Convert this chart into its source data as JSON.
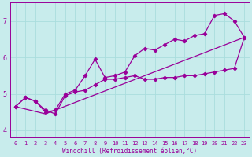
{
  "xlabel": "Windchill (Refroidissement éolien,°C)",
  "bg_color": "#c8ecec",
  "line_color": "#990099",
  "grid_color": "#aadddd",
  "xlim": [
    -0.5,
    23.5
  ],
  "ylim": [
    3.8,
    7.5
  ],
  "xticks": [
    0,
    1,
    2,
    3,
    4,
    5,
    6,
    7,
    8,
    9,
    10,
    11,
    12,
    13,
    14,
    15,
    16,
    17,
    18,
    19,
    20,
    21,
    22,
    23
  ],
  "yticks": [
    4,
    5,
    6,
    7
  ],
  "series_upper_x": [
    0,
    1,
    2,
    3,
    4,
    5,
    6,
    7,
    8,
    9,
    10,
    11,
    12,
    13,
    14,
    15,
    16,
    17,
    18,
    19,
    20,
    21,
    22,
    23
  ],
  "series_upper_y": [
    4.65,
    4.9,
    4.8,
    4.5,
    4.55,
    5.0,
    5.1,
    5.5,
    5.95,
    5.45,
    5.5,
    5.6,
    6.05,
    6.25,
    6.2,
    6.35,
    6.5,
    6.45,
    6.6,
    6.65,
    7.15,
    7.2,
    7.0,
    6.55
  ],
  "series_lower_x": [
    0,
    1,
    2,
    3,
    4,
    5,
    6,
    7,
    8,
    9,
    10,
    11,
    12,
    13,
    14,
    15,
    16,
    17,
    18,
    19,
    20,
    21,
    22,
    23
  ],
  "series_lower_y": [
    4.65,
    4.9,
    4.8,
    4.55,
    4.45,
    4.95,
    5.05,
    5.1,
    5.25,
    5.4,
    5.4,
    5.45,
    5.5,
    5.4,
    5.4,
    5.45,
    5.45,
    5.5,
    5.5,
    5.55,
    5.6,
    5.65,
    5.7,
    6.55
  ],
  "series_line_x": [
    0,
    3,
    23
  ],
  "series_line_y": [
    4.65,
    4.45,
    6.55
  ]
}
